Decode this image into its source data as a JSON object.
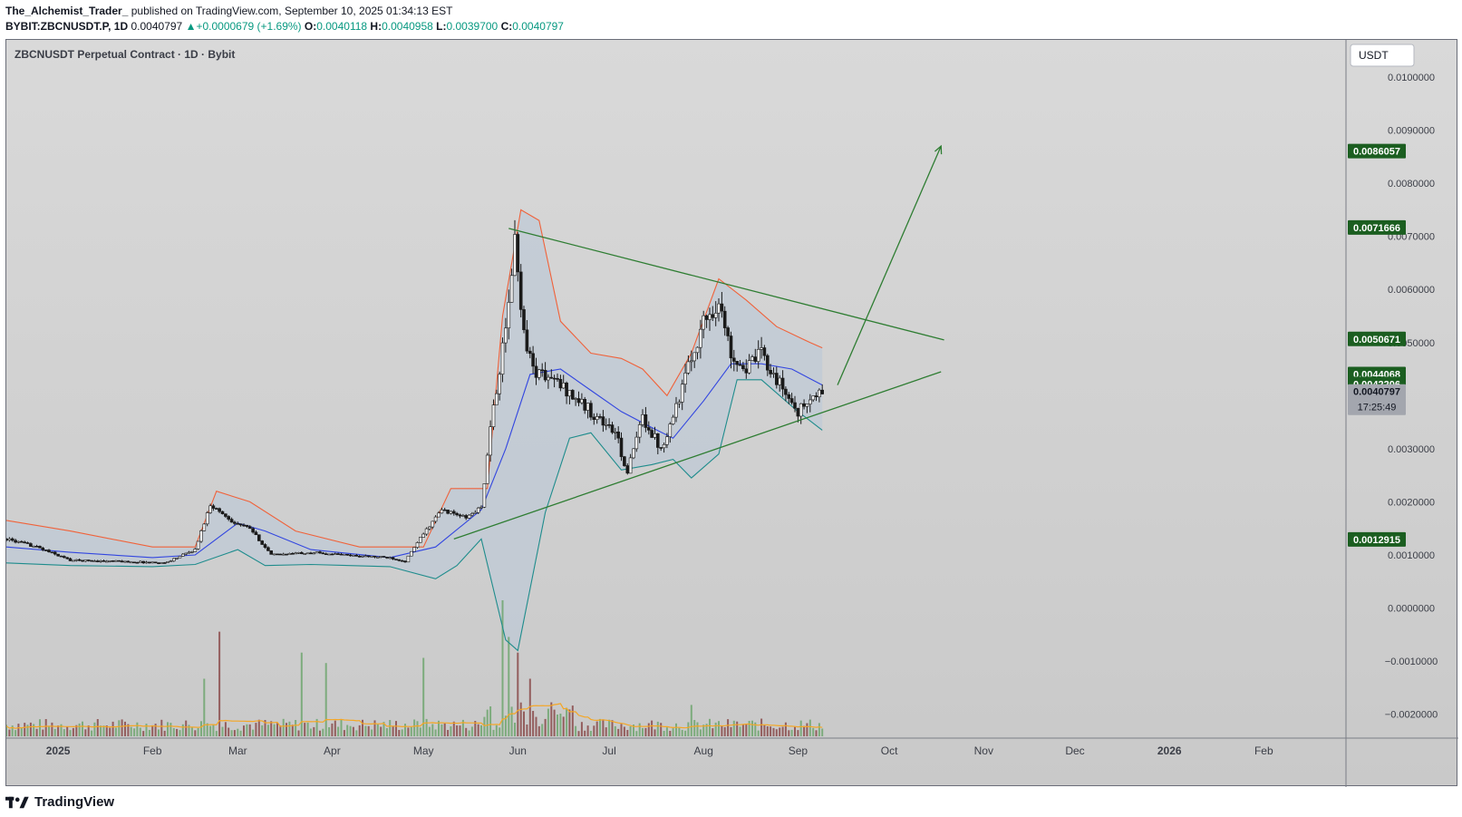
{
  "header": {
    "author": "The_Alchemist_Trader_",
    "published": "published on TradingView.com, September 10, 2025 01:34:13 EST",
    "symbol": "BYBIT:ZBCNUSDT.P, 1D",
    "last": "0.0040797",
    "change": "+0.0000679 (+1.69%)",
    "o_label": "O:",
    "o": "0.0040118",
    "h_label": "H:",
    "h": "0.0040958",
    "l_label": "L:",
    "l": "0.0039700",
    "c_label": "C:",
    "c": "0.0040797"
  },
  "chart_title": "ZBCNUSDT Perpetual Contract · 1D · Bybit",
  "currency_button": "USDT",
  "countdown": "17:25:49",
  "footer": {
    "brand": "TradingView"
  },
  "chart_data": {
    "type": "candlestick",
    "title": "ZBCNUSDT Perpetual Contract · 1D · Bybit",
    "y_axis": {
      "ticks": [
        0.01,
        0.009,
        0.008,
        0.007,
        0.006,
        0.005,
        0.003,
        0.002,
        0.001,
        0.0,
        -0.001,
        -0.002
      ],
      "tick_labels": [
        "0.0100000",
        "0.0090000",
        "0.0080000",
        "0.0070000",
        "0.0060000",
        "0.0050000",
        "0.0030000",
        "0.0020000",
        "0.0010000",
        "0.0000000",
        "−0.0010000",
        "−0.0020000"
      ],
      "range": [
        -0.00245,
        0.0107
      ]
    },
    "x_axis": {
      "range": [
        "2024-12-15",
        "2026-02-28"
      ],
      "ticks": [
        {
          "label": "2025",
          "date": "2025-01-01",
          "bold": true
        },
        {
          "label": "Feb",
          "date": "2025-02-01"
        },
        {
          "label": "Mar",
          "date": "2025-03-01"
        },
        {
          "label": "Apr",
          "date": "2025-04-01"
        },
        {
          "label": "May",
          "date": "2025-05-01"
        },
        {
          "label": "Jun",
          "date": "2025-06-01"
        },
        {
          "label": "Jul",
          "date": "2025-07-01"
        },
        {
          "label": "Aug",
          "date": "2025-08-01"
        },
        {
          "label": "Sep",
          "date": "2025-09-01"
        },
        {
          "label": "Oct",
          "date": "2025-10-01"
        },
        {
          "label": "Nov",
          "date": "2025-11-01"
        },
        {
          "label": "Dec",
          "date": "2025-12-01"
        },
        {
          "label": "2026",
          "date": "2026-01-01",
          "bold": true
        },
        {
          "label": "Feb",
          "date": "2026-02-01"
        }
      ]
    },
    "price_path": [
      [
        "2024-12-15",
        0.0013
      ],
      [
        "2024-12-25",
        0.00115
      ],
      [
        "2025-01-05",
        0.0009
      ],
      [
        "2025-01-20",
        0.00088
      ],
      [
        "2025-02-05",
        0.00085
      ],
      [
        "2025-02-15",
        0.0011
      ],
      [
        "2025-02-20",
        0.00195
      ],
      [
        "2025-02-28",
        0.0016
      ],
      [
        "2025-03-05",
        0.0015
      ],
      [
        "2025-03-12",
        0.001
      ],
      [
        "2025-03-25",
        0.00105
      ],
      [
        "2025-04-10",
        0.00098
      ],
      [
        "2025-04-20",
        0.00095
      ],
      [
        "2025-04-25",
        0.00088
      ],
      [
        "2025-05-01",
        0.0014
      ],
      [
        "2025-05-07",
        0.00185
      ],
      [
        "2025-05-15",
        0.0017
      ],
      [
        "2025-05-20",
        0.0019
      ],
      [
        "2025-05-24",
        0.0038
      ],
      [
        "2025-05-28",
        0.0052
      ],
      [
        "2025-05-31",
        0.0069
      ],
      [
        "2025-06-03",
        0.0052
      ],
      [
        "2025-06-06",
        0.0045
      ],
      [
        "2025-06-15",
        0.0042
      ],
      [
        "2025-06-25",
        0.0037
      ],
      [
        "2025-07-03",
        0.0033
      ],
      [
        "2025-07-07",
        0.00255
      ],
      [
        "2025-07-12",
        0.0036
      ],
      [
        "2025-07-18",
        0.003
      ],
      [
        "2025-07-23",
        0.0038
      ],
      [
        "2025-07-28",
        0.0047
      ],
      [
        "2025-08-01",
        0.0054
      ],
      [
        "2025-08-06",
        0.00575
      ],
      [
        "2025-08-10",
        0.0048
      ],
      [
        "2025-08-15",
        0.0045
      ],
      [
        "2025-08-20",
        0.0048
      ],
      [
        "2025-08-25",
        0.0043
      ],
      [
        "2025-09-01",
        0.0037
      ],
      [
        "2025-09-05",
        0.0039
      ],
      [
        "2025-09-09",
        0.00408
      ]
    ],
    "bollinger": {
      "upper": [
        [
          "2024-12-15",
          0.00165
        ],
        [
          "2025-01-05",
          0.00145
        ],
        [
          "2025-02-01",
          0.00115
        ],
        [
          "2025-02-15",
          0.00115
        ],
        [
          "2025-02-22",
          0.0022
        ],
        [
          "2025-03-05",
          0.002
        ],
        [
          "2025-03-20",
          0.00145
        ],
        [
          "2025-04-10",
          0.00115
        ],
        [
          "2025-05-01",
          0.00115
        ],
        [
          "2025-05-10",
          0.00225
        ],
        [
          "2025-05-22",
          0.00225
        ],
        [
          "2025-05-27",
          0.0055
        ],
        [
          "2025-06-02",
          0.0075
        ],
        [
          "2025-06-08",
          0.0073
        ],
        [
          "2025-06-15",
          0.0054
        ],
        [
          "2025-06-25",
          0.0048
        ],
        [
          "2025-07-05",
          0.0047
        ],
        [
          "2025-07-12",
          0.0045
        ],
        [
          "2025-07-20",
          0.004
        ],
        [
          "2025-07-28",
          0.0048
        ],
        [
          "2025-08-06",
          0.0062
        ],
        [
          "2025-08-15",
          0.0058
        ],
        [
          "2025-08-25",
          0.0053
        ],
        [
          "2025-09-05",
          0.005
        ],
        [
          "2025-09-09",
          0.0049
        ]
      ],
      "basis": [
        [
          "2024-12-15",
          0.00115
        ],
        [
          "2025-01-05",
          0.00105
        ],
        [
          "2025-02-01",
          0.00095
        ],
        [
          "2025-02-15",
          0.001
        ],
        [
          "2025-03-01",
          0.0016
        ],
        [
          "2025-03-10",
          0.00145
        ],
        [
          "2025-03-25",
          0.0011
        ],
        [
          "2025-04-20",
          0.00095
        ],
        [
          "2025-05-05",
          0.00115
        ],
        [
          "2025-05-20",
          0.00185
        ],
        [
          "2025-05-28",
          0.003
        ],
        [
          "2025-06-05",
          0.0044
        ],
        [
          "2025-06-15",
          0.0045
        ],
        [
          "2025-06-25",
          0.0041
        ],
        [
          "2025-07-05",
          0.0037
        ],
        [
          "2025-07-15",
          0.0034
        ],
        [
          "2025-07-22",
          0.0032
        ],
        [
          "2025-08-01",
          0.0039
        ],
        [
          "2025-08-10",
          0.0046
        ],
        [
          "2025-08-20",
          0.0046
        ],
        [
          "2025-08-30",
          0.0045
        ],
        [
          "2025-09-09",
          0.0042
        ]
      ],
      "lower": [
        [
          "2024-12-15",
          0.00085
        ],
        [
          "2025-01-05",
          0.0008
        ],
        [
          "2025-02-01",
          0.00078
        ],
        [
          "2025-02-15",
          0.00082
        ],
        [
          "2025-03-01",
          0.0011
        ],
        [
          "2025-03-10",
          0.0008
        ],
        [
          "2025-03-25",
          0.00082
        ],
        [
          "2025-04-20",
          0.00078
        ],
        [
          "2025-05-05",
          0.00055
        ],
        [
          "2025-05-12",
          0.0008
        ],
        [
          "2025-05-20",
          0.0013
        ],
        [
          "2025-05-28",
          -0.0006
        ],
        [
          "2025-06-01",
          -0.0008
        ],
        [
          "2025-06-10",
          0.0018
        ],
        [
          "2025-06-18",
          0.0032
        ],
        [
          "2025-06-25",
          0.0033
        ],
        [
          "2025-07-05",
          0.0026
        ],
        [
          "2025-07-15",
          0.0027
        ],
        [
          "2025-07-22",
          0.0028
        ],
        [
          "2025-07-28",
          0.00245
        ],
        [
          "2025-08-06",
          0.0029
        ],
        [
          "2025-08-12",
          0.0043
        ],
        [
          "2025-08-20",
          0.0043
        ],
        [
          "2025-09-01",
          0.0037
        ],
        [
          "2025-09-09",
          0.00335
        ]
      ]
    },
    "trendlines": [
      {
        "name": "triangle-upper",
        "from": [
          "2025-05-29",
          0.00715
        ],
        "to": [
          "2025-10-19",
          0.00505
        ]
      },
      {
        "name": "triangle-lower",
        "from": [
          "2025-05-11",
          0.0013
        ],
        "to": [
          "2025-10-18",
          0.00445
        ]
      },
      {
        "name": "projection-arrow",
        "from": [
          "2025-09-14",
          0.0042
        ],
        "to": [
          "2025-10-18",
          0.0087
        ]
      }
    ],
    "price_labels": [
      {
        "value": "0.0086057",
        "y": 0.0086057,
        "color": "#1b5e20"
      },
      {
        "value": "0.0071666",
        "y": 0.0071666,
        "color": "#1b5e20"
      },
      {
        "value": "0.0050671",
        "y": 0.0050671,
        "color": "#1b5e20"
      },
      {
        "value": "0.0044068",
        "y": 0.0044068,
        "color": "#1b5e20"
      },
      {
        "value": "0.0042206",
        "y": 0.0042206,
        "color": "#1b5e20"
      },
      {
        "value": "0.0040797",
        "y": 0.0040797,
        "color": "#a3a6ae"
      },
      {
        "value": "0.0012915",
        "y": 0.0012915,
        "color": "#1b5e20"
      }
    ],
    "volume": {
      "series": [
        {
          "name": "up",
          "color": "#6ea66e"
        },
        {
          "name": "down",
          "color": "#8a4a4a"
        },
        {
          "name": "volume-ma",
          "color": "#f5a623"
        }
      ],
      "peaks": [
        [
          "2025-02-23",
          1.0
        ],
        [
          "2025-02-18",
          0.55
        ],
        [
          "2025-03-22",
          0.8
        ],
        [
          "2025-03-30",
          0.7
        ],
        [
          "2025-05-01",
          0.75
        ],
        [
          "2025-05-27",
          1.3
        ],
        [
          "2025-05-29",
          0.95
        ],
        [
          "2025-06-01",
          0.8
        ],
        [
          "2025-06-05",
          0.55
        ],
        [
          "2025-07-28",
          0.3
        ]
      ]
    }
  }
}
